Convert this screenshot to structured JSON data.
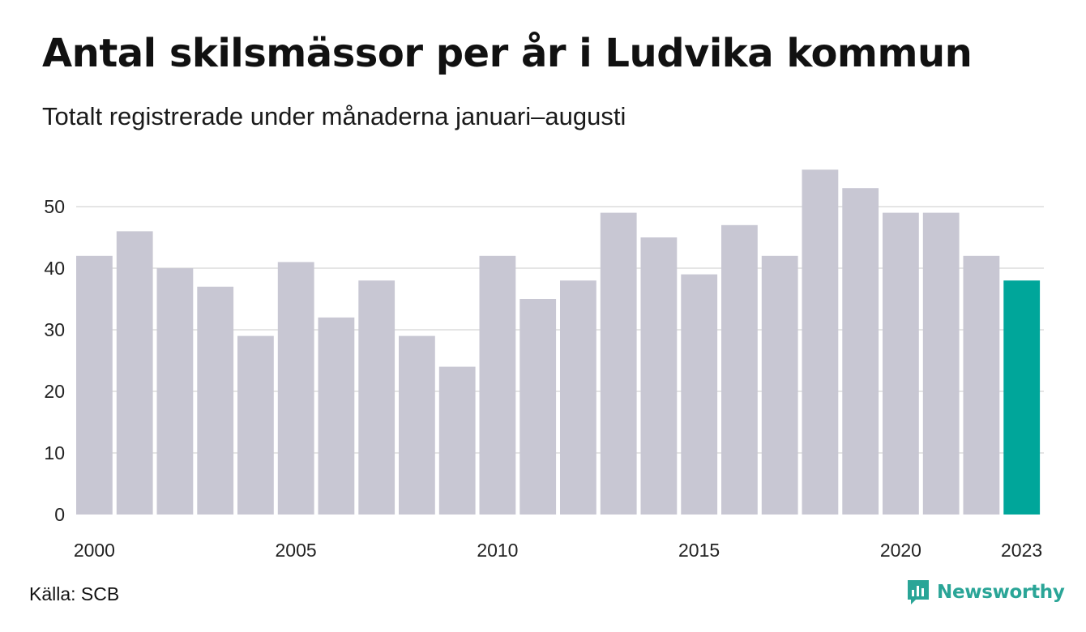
{
  "title": "Antal skilsmässor per år i Ludvika kommun",
  "subtitle": "Totalt registrerade under månaderna januari–augusti",
  "source": "Källa: SCB",
  "brand": "Newsworthy",
  "colors": {
    "bar": "#c8c7d3",
    "highlight": "#00a69a",
    "grid": "#e5e5e5",
    "brand": "#2aa597"
  },
  "chart_data": {
    "type": "bar",
    "x": [
      2000,
      2001,
      2002,
      2003,
      2004,
      2005,
      2006,
      2007,
      2008,
      2009,
      2010,
      2011,
      2012,
      2013,
      2014,
      2015,
      2016,
      2017,
      2018,
      2019,
      2020,
      2021,
      2022,
      2023
    ],
    "values": [
      42,
      46,
      40,
      37,
      29,
      41,
      32,
      38,
      29,
      24,
      42,
      35,
      38,
      49,
      45,
      39,
      47,
      42,
      56,
      53,
      49,
      49,
      42,
      38
    ],
    "highlight": 2023,
    "x_tick_labels": [
      "2000",
      "2005",
      "2010",
      "2015",
      "2020",
      "2023"
    ],
    "y_ticks": [
      0,
      10,
      20,
      30,
      40,
      50
    ],
    "ylim": [
      0,
      56
    ],
    "grid": true
  }
}
